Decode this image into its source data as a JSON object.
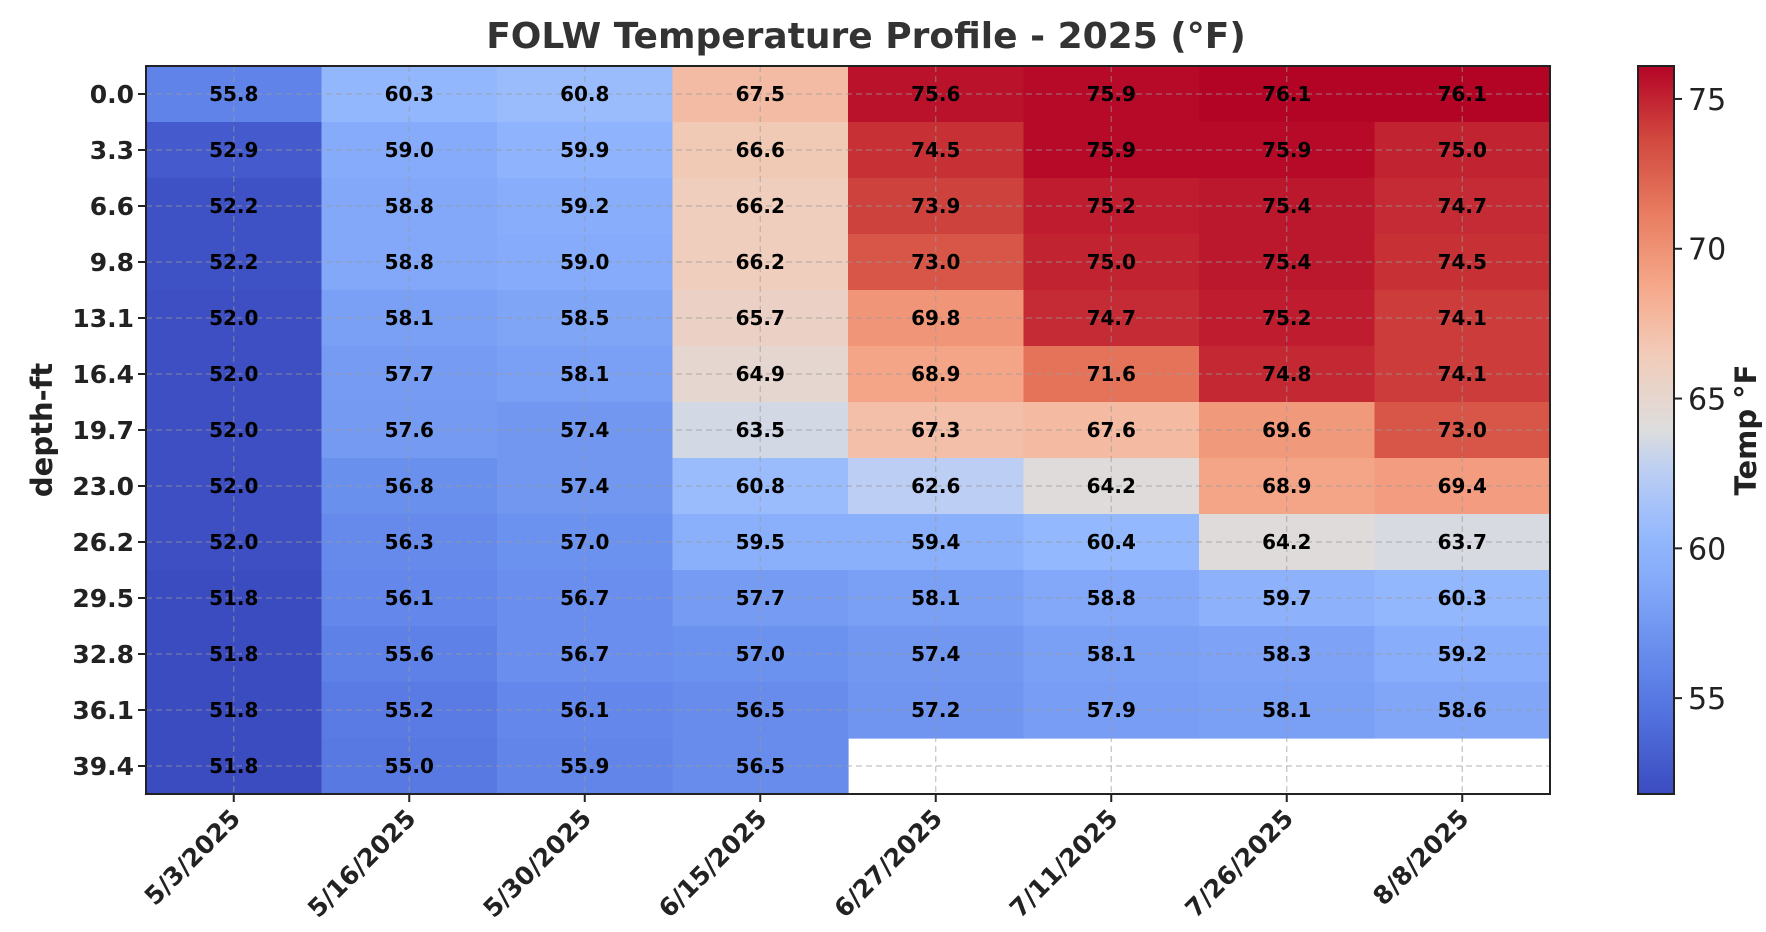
{
  "chart_data": {
    "type": "heatmap",
    "title": "FOLW Temperature Profile - 2025 (°F)",
    "xlabel": "",
    "ylabel": "depth-ft",
    "colorbar_label": "Temp °F",
    "colorbar_ticks": [
      55,
      60,
      65,
      70,
      75
    ],
    "colorbar_ticks_text": [
      "55",
      "60",
      "65",
      "70",
      "75"
    ],
    "vmin": 51.8,
    "vmax": 76.1,
    "colormap": "coolwarm",
    "grid": true,
    "x_categories": [
      "5/3/2025",
      "5/16/2025",
      "5/30/2025",
      "6/15/2025",
      "6/27/2025",
      "7/11/2025",
      "7/26/2025",
      "8/8/2025"
    ],
    "y_categories": [
      "0.0",
      "3.3",
      "6.6",
      "9.8",
      "13.1",
      "16.4",
      "19.7",
      "23.0",
      "26.2",
      "29.5",
      "32.8",
      "36.1",
      "39.4"
    ],
    "values": [
      [
        55.8,
        60.3,
        60.8,
        67.5,
        75.6,
        75.9,
        76.1,
        76.1
      ],
      [
        52.9,
        59.0,
        59.9,
        66.6,
        74.5,
        75.9,
        75.9,
        75.0
      ],
      [
        52.2,
        58.8,
        59.2,
        66.2,
        73.9,
        75.2,
        75.4,
        74.7
      ],
      [
        52.2,
        58.8,
        59.0,
        66.2,
        73.0,
        75.0,
        75.4,
        74.5
      ],
      [
        52.0,
        58.1,
        58.5,
        65.7,
        69.8,
        74.7,
        75.2,
        74.1
      ],
      [
        52.0,
        57.7,
        58.1,
        64.9,
        68.9,
        71.6,
        74.8,
        74.1
      ],
      [
        52.0,
        57.6,
        57.4,
        63.5,
        67.3,
        67.6,
        69.6,
        73.0
      ],
      [
        52.0,
        56.8,
        57.4,
        60.8,
        62.6,
        64.2,
        68.9,
        69.4
      ],
      [
        52.0,
        56.3,
        57.0,
        59.5,
        59.4,
        60.4,
        64.2,
        63.7
      ],
      [
        51.8,
        56.1,
        56.7,
        57.7,
        58.1,
        58.8,
        59.7,
        60.3
      ],
      [
        51.8,
        55.6,
        56.7,
        57.0,
        57.4,
        58.1,
        58.3,
        59.2
      ],
      [
        51.8,
        55.2,
        56.1,
        56.5,
        57.2,
        57.9,
        58.1,
        58.6
      ],
      [
        51.8,
        55.0,
        55.9,
        56.5,
        null,
        null,
        null,
        null
      ]
    ],
    "values_text": [
      [
        "55.8",
        "60.3",
        "60.8",
        "67.5",
        "75.6",
        "75.9",
        "76.1",
        "76.1"
      ],
      [
        "52.9",
        "59.0",
        "59.9",
        "66.6",
        "74.5",
        "75.9",
        "75.9",
        "75.0"
      ],
      [
        "52.2",
        "58.8",
        "59.2",
        "66.2",
        "73.9",
        "75.2",
        "75.4",
        "74.7"
      ],
      [
        "52.2",
        "58.8",
        "59.0",
        "66.2",
        "73.0",
        "75.0",
        "75.4",
        "74.5"
      ],
      [
        "52.0",
        "58.1",
        "58.5",
        "65.7",
        "69.8",
        "74.7",
        "75.2",
        "74.1"
      ],
      [
        "52.0",
        "57.7",
        "58.1",
        "64.9",
        "68.9",
        "71.6",
        "74.8",
        "74.1"
      ],
      [
        "52.0",
        "57.6",
        "57.4",
        "63.5",
        "67.3",
        "67.6",
        "69.6",
        "73.0"
      ],
      [
        "52.0",
        "56.8",
        "57.4",
        "60.8",
        "62.6",
        "64.2",
        "68.9",
        "69.4"
      ],
      [
        "52.0",
        "56.3",
        "57.0",
        "59.5",
        "59.4",
        "60.4",
        "64.2",
        "63.7"
      ],
      [
        "51.8",
        "56.1",
        "56.7",
        "57.7",
        "58.1",
        "58.8",
        "59.7",
        "60.3"
      ],
      [
        "51.8",
        "55.6",
        "56.7",
        "57.0",
        "57.4",
        "58.1",
        "58.3",
        "59.2"
      ],
      [
        "51.8",
        "55.2",
        "56.1",
        "56.5",
        "57.2",
        "57.9",
        "58.1",
        "58.6"
      ],
      [
        "51.8",
        "55.0",
        "55.9",
        "56.5",
        "",
        "",
        "",
        ""
      ]
    ]
  }
}
